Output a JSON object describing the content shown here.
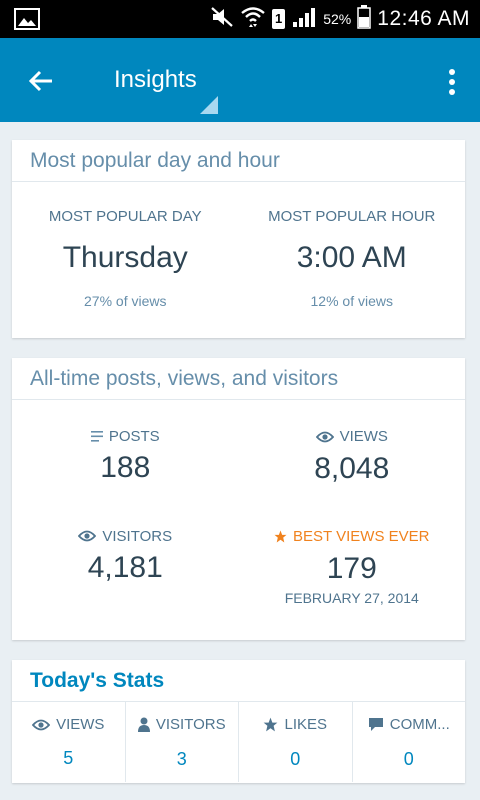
{
  "status_bar": {
    "sim_slot": "1",
    "battery": "52%",
    "time": "12:46 AM",
    "icons": [
      "gallery-icon",
      "mute-icon",
      "wifi-icon",
      "signal-icon",
      "battery-icon"
    ]
  },
  "app_bar": {
    "title": "Insights",
    "color": "#0087be"
  },
  "popular": {
    "title": "Most popular day and hour",
    "day_label": "MOST POPULAR DAY",
    "day_value": "Thursday",
    "day_sub": "27% of views",
    "hour_label": "MOST POPULAR HOUR",
    "hour_value": "3:00 AM",
    "hour_sub": "12% of views"
  },
  "alltime": {
    "title": "All-time posts, views, and visitors",
    "posts_label": "POSTS",
    "posts_value": "188",
    "views_label": "VIEWS",
    "views_value": "8,048",
    "visitors_label": "VISITORS",
    "visitors_value": "4,181",
    "best_label": "BEST VIEWS EVER",
    "best_value": "179",
    "best_date": "FEBRUARY 27, 2014",
    "accent_orange": "#f0821e"
  },
  "today": {
    "title": "Today's Stats",
    "views_label": "VIEWS",
    "views_value": "5",
    "visitors_label": "VISITORS",
    "visitors_value": "3",
    "likes_label": "LIKES",
    "likes_value": "0",
    "comments_label": "COMM...",
    "comments_value": "0"
  }
}
